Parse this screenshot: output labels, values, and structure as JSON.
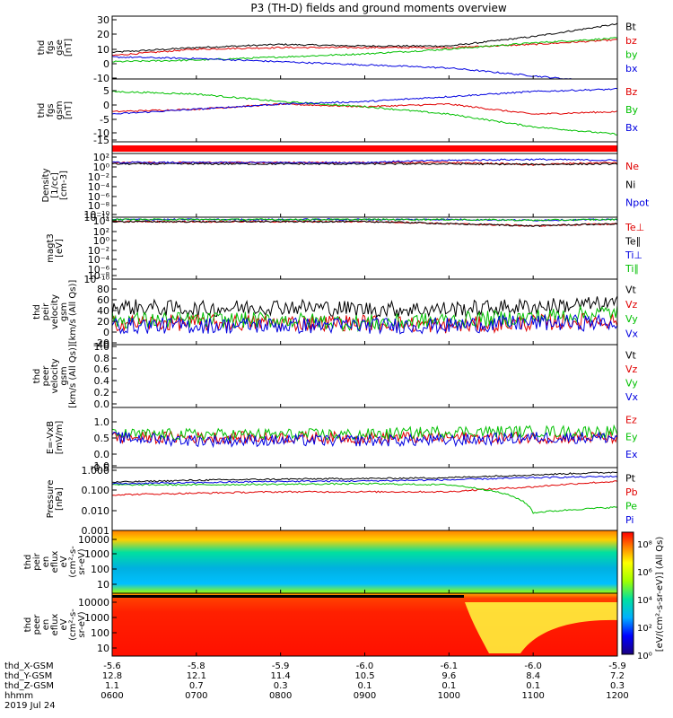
{
  "title": "P3 (TH-D) fields and ground moments overview",
  "panels": [
    {
      "id": "fgs-gse",
      "ylabel": [
        "thd",
        "fgs",
        "gse",
        "[nT]"
      ],
      "ticks": [
        "30",
        "20",
        "10",
        "0",
        "-10"
      ],
      "legend": [
        {
          "text": "Bt",
          "color": "#000000"
        },
        {
          "text": "bz",
          "color": "#e00000"
        },
        {
          "text": "by",
          "color": "#00c000"
        },
        {
          "text": "bx",
          "color": "#0000e0"
        }
      ]
    },
    {
      "id": "fgs-gsm",
      "ylabel": [
        "thd",
        "fgs",
        "gsm",
        "[nT]"
      ],
      "ticks": [
        "5",
        "0",
        "-5",
        "-10",
        "-15"
      ],
      "legend": [
        {
          "text": "Bz",
          "color": "#e00000"
        },
        {
          "text": "By",
          "color": "#00c000"
        },
        {
          "text": "Bx",
          "color": "#0000e0"
        }
      ]
    },
    {
      "id": "density",
      "ylabel": [
        "Density",
        "[1/cc]",
        "[cm-3]"
      ],
      "ticks": [
        "10²",
        "10⁰",
        "10⁻²",
        "10⁻⁴",
        "10⁻⁶",
        "10⁻⁸",
        "10⁻¹⁰",
        "10⁻¹²"
      ],
      "legend": [
        {
          "text": "Ne",
          "color": "#e00000"
        },
        {
          "text": "Ni",
          "color": "#000000"
        },
        {
          "text": "Npot",
          "color": "#0000e0"
        }
      ]
    },
    {
      "id": "temperature",
      "ylabel": [
        "magt3",
        "[eV]"
      ],
      "ticks": [
        "10⁴",
        "10²",
        "10⁰",
        "10⁻²",
        "10⁻⁴",
        "10⁻⁶",
        "10⁻⁸",
        "10⁻¹⁰"
      ],
      "legend": [
        {
          "text": "Te⊥",
          "color": "#e00000"
        },
        {
          "text": "Te∥",
          "color": "#000000"
        },
        {
          "text": "Ti⊥",
          "color": "#0000e0"
        },
        {
          "text": "Ti∥",
          "color": "#00c000"
        }
      ]
    },
    {
      "id": "peir-velocity",
      "ylabel": [
        "thd",
        "peir",
        "velocity",
        "gsm",
        "[km/s (All Qs)]"
      ],
      "ticks": [
        "80",
        "60",
        "40",
        "20",
        "0",
        "-20",
        "-40"
      ],
      "legend": [
        {
          "text": "Vt",
          "color": "#000000"
        },
        {
          "text": "Vz",
          "color": "#e00000"
        },
        {
          "text": "Vy",
          "color": "#00c000"
        },
        {
          "text": "Vx",
          "color": "#0000e0"
        }
      ]
    },
    {
      "id": "peer-velocity",
      "ylabel": [
        "thd",
        "peer",
        "velocity",
        "gsm",
        "[km/s (All Qs)]"
      ],
      "ticks": [
        "1.0",
        "0.8",
        "0.6",
        "0.4",
        "0.2",
        "0.0"
      ],
      "legend": [
        {
          "text": "Vt",
          "color": "#000000"
        },
        {
          "text": "Vz",
          "color": "#e00000"
        },
        {
          "text": "Vy",
          "color": "#00c000"
        },
        {
          "text": "Vx",
          "color": "#0000e0"
        }
      ]
    },
    {
      "id": "efield",
      "ylabel": [
        "E=-VxB",
        "[mV/m]"
      ],
      "ticks": [
        "1.0",
        "0.5",
        "0.0",
        "-0.5",
        "-1.0"
      ],
      "legend": [
        {
          "text": "Ez",
          "color": "#e00000"
        },
        {
          "text": "Ey",
          "color": "#00c000"
        },
        {
          "text": "Ex",
          "color": "#0000e0"
        }
      ]
    },
    {
      "id": "pressure",
      "ylabel": [
        "Pressure",
        "[nPa]"
      ],
      "ticks": [
        "1.000",
        "0.100",
        "0.010",
        "0.001"
      ],
      "legend": [
        {
          "text": "Pt",
          "color": "#000000"
        },
        {
          "text": "Pb",
          "color": "#e00000"
        },
        {
          "text": "Pe",
          "color": "#00c000"
        },
        {
          "text": "Pi",
          "color": "#0000e0"
        }
      ]
    },
    {
      "id": "peir-eflux",
      "ylabel": [
        "thd",
        "peir",
        "en",
        "eflux",
        "eV",
        "(cm²-s-",
        "sr-eV)"
      ],
      "ticks": [
        "10000",
        "1000",
        "100",
        "10"
      ]
    },
    {
      "id": "peer-eflux",
      "ylabel": [
        "thd",
        "peer",
        "en",
        "eflux",
        "eV",
        "(cm²-s-",
        "sr-eV)"
      ],
      "ticks": [
        "10000",
        "1000",
        "100",
        "10"
      ]
    }
  ],
  "colorbar": {
    "label": "[eV/(cm²-s-sr-eV)] (All Qs)",
    "ticks": [
      "10⁸",
      "10⁶",
      "10⁴",
      "10²",
      "10⁰"
    ]
  },
  "ephemeris": {
    "rows": [
      {
        "label": "thd_X-GSM",
        "values": [
          "-5.6",
          "-5.8",
          "-5.9",
          "-6.0",
          "-6.1",
          "-6.0",
          "-5.9"
        ]
      },
      {
        "label": "thd_Y-GSM",
        "values": [
          "12.8",
          "12.1",
          "11.4",
          "10.5",
          "9.6",
          "8.4",
          "7.2"
        ]
      },
      {
        "label": "thd_Z-GSM",
        "values": [
          "1.1",
          "0.7",
          "0.3",
          "0.1",
          "0.1",
          "0.1",
          "0.3"
        ]
      },
      {
        "label": "hhmm",
        "values": [
          "0600",
          "0700",
          "0800",
          "0900",
          "1000",
          "1100",
          "1200"
        ]
      }
    ],
    "date": "2019 Jul 24"
  },
  "chart_data": {
    "type": "line",
    "title": "P3 (TH-D) fields and ground moments overview",
    "x": [
      "0600",
      "0700",
      "0800",
      "0900",
      "1000",
      "1100",
      "1200"
    ],
    "xlabel": "hhmm",
    "panels": [
      {
        "ylabel": "thd fgs gse [nT]",
        "ylim": [
          -10,
          30
        ],
        "series": [
          {
            "name": "Bt",
            "values": [
              7,
              10,
              12,
              11,
              11,
              17,
              25
            ]
          },
          {
            "name": "bz",
            "values": [
              5,
              9,
              10,
              10,
              10,
              12,
              15
            ]
          },
          {
            "name": "by",
            "values": [
              1,
              2,
              4,
              6,
              9,
              13,
              16
            ]
          },
          {
            "name": "bx",
            "values": [
              4,
              3,
              1,
              -1,
              -3,
              -8,
              -13
            ]
          }
        ]
      },
      {
        "ylabel": "thd fgs gsm [nT]",
        "ylim": [
          -17,
          8
        ],
        "series": [
          {
            "name": "Bz",
            "values": [
              -5,
              -4,
              -2,
              -3,
              -2,
              -6,
              -5
            ]
          },
          {
            "name": "By",
            "values": [
              3,
              2,
              -1,
              -3,
              -6,
              -11,
              -14
            ]
          },
          {
            "name": "Bx",
            "values": [
              -6,
              -4,
              -2,
              -1,
              1,
              3,
              4
            ]
          }
        ]
      },
      {
        "ylabel": "Density [1/cc] [cm-3]",
        "scale": "log",
        "ylim": [
          1e-12,
          100
        ],
        "series": [
          {
            "name": "Ne",
            "values": [
              1,
              1,
              1,
              1,
              1,
              0.3,
              1
            ]
          },
          {
            "name": "Ni",
            "values": [
              0.5,
              0.5,
              0.5,
              0.5,
              0.5,
              0.4,
              0.5
            ]
          },
          {
            "name": "Npot",
            "values": [
              1,
              1,
              1,
              1,
              3,
              5,
              3
            ]
          }
        ]
      },
      {
        "ylabel": "magt3 [eV]",
        "scale": "log",
        "ylim": [
          1e-10,
          10000
        ],
        "series": [
          {
            "name": "Te⊥",
            "values": [
              1000,
              1000,
              1000,
              1000,
              300,
              100,
              300
            ]
          },
          {
            "name": "Te∥",
            "values": [
              1000,
              1000,
              1000,
              1000,
              300,
              100,
              300
            ]
          },
          {
            "name": "Ti⊥",
            "values": [
              3000,
              3000,
              3000,
              3000,
              3000,
              2000,
              3000
            ]
          },
          {
            "name": "Ti∥",
            "values": [
              3000,
              3000,
              3000,
              3000,
              3000,
              2000,
              3000
            ]
          }
        ]
      },
      {
        "ylabel": "thd peir velocity gsm [km/s (All Qs)]",
        "ylim": [
          -40,
          80
        ],
        "series": [
          {
            "name": "Vt",
            "values": [
              30,
              25,
              30,
              25,
              25,
              30,
              35
            ]
          },
          {
            "name": "Vz",
            "values": [
              0,
              0,
              0,
              0,
              -5,
              0,
              5
            ]
          },
          {
            "name": "Vy",
            "values": [
              5,
              5,
              5,
              0,
              5,
              10,
              20
            ]
          },
          {
            "name": "Vx",
            "values": [
              -5,
              -5,
              -5,
              -5,
              -5,
              0,
              0
            ]
          }
        ]
      },
      {
        "ylabel": "thd peer velocity gsm [km/s (All Qs)]",
        "ylim": [
          0,
          1
        ],
        "series": []
      },
      {
        "ylabel": "E=-VxB [mV/m]",
        "ylim": [
          -1,
          1
        ],
        "series": [
          {
            "name": "Ez",
            "values": [
              0,
              0,
              0,
              0,
              0,
              0,
              0
            ]
          },
          {
            "name": "Ey",
            "values": [
              0.1,
              0.1,
              0.1,
              0.1,
              0.2,
              0.2,
              0.2
            ]
          },
          {
            "name": "Ex",
            "values": [
              0,
              -0.1,
              -0.1,
              -0.1,
              -0.1,
              0,
              0
            ]
          }
        ]
      },
      {
        "ylabel": "Pressure [nPa]",
        "scale": "log",
        "ylim": [
          0.001,
          1
        ],
        "series": [
          {
            "name": "Pt",
            "values": [
              0.2,
              0.25,
              0.28,
              0.3,
              0.33,
              0.45,
              0.6
            ]
          },
          {
            "name": "Pb",
            "values": [
              0.05,
              0.06,
              0.07,
              0.07,
              0.07,
              0.12,
              0.22
            ]
          },
          {
            "name": "Pe",
            "values": [
              0.15,
              0.15,
              0.16,
              0.17,
              0.15,
              0.007,
              0.013
            ]
          },
          {
            "name": "Pi",
            "values": [
              0.17,
              0.19,
              0.22,
              0.23,
              0.26,
              0.33,
              0.38
            ]
          }
        ]
      }
    ],
    "spectrograms": [
      {
        "ylabel": "thd peir en eflux eV (cm²-s-sr-eV)",
        "scale": "log",
        "ylim": [
          5,
          30000
        ]
      },
      {
        "ylabel": "thd peer en eflux eV (cm²-s-sr-eV)",
        "scale": "log",
        "ylim": [
          5,
          30000
        ]
      }
    ],
    "colorbar": {
      "label": "[eV/(cm²-s-sr-eV)] (All Qs)",
      "scale": "log",
      "range": [
        1,
        100000000.0
      ]
    }
  }
}
